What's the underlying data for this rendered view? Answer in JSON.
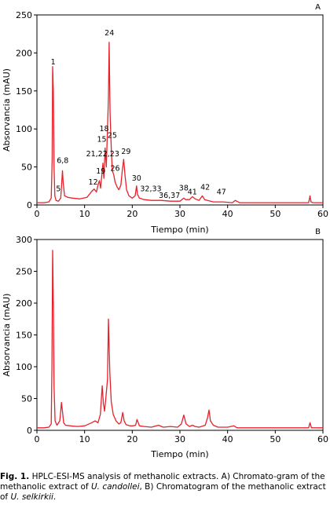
{
  "caption": {
    "fig_label": "Fig. 1.",
    "text_1": " HPLC-ESI-MS analysis of methanolic extracts. A) Chromato-gram of the methanolic extract of ",
    "species_a": "U. candollei",
    "text_2": ", B) Chromatogram of the methanolic extract of ",
    "species_b": "U. selkirkii",
    "text_3": "."
  },
  "colors": {
    "trace": "#e8202a",
    "axis": "#000000"
  },
  "chart_data": [
    {
      "type": "line",
      "panel": "A",
      "xlabel": "Tiempo (min)",
      "ylabel": "Absorvancia (mAU)",
      "xlim": [
        0,
        60
      ],
      "ylim": [
        0,
        250
      ],
      "x_ticks": [
        0,
        10,
        20,
        30,
        40,
        50,
        60
      ],
      "y_ticks": [
        0,
        50,
        100,
        150,
        200,
        250
      ],
      "grid": false,
      "series": [
        {
          "x": [
            0,
            1.5,
            2.5,
            3.0,
            3.2,
            3.3,
            3.45,
            3.6,
            3.75,
            4.0,
            4.5,
            5.0,
            5.2,
            5.35,
            5.5,
            5.8,
            6.5,
            7.5,
            9.0,
            10.5,
            11.5,
            12.0,
            12.5,
            12.8,
            13.1,
            13.35,
            13.6,
            13.85,
            14.05,
            14.3,
            14.55,
            14.8,
            15.0,
            15.15,
            15.35,
            15.6,
            15.8,
            16.1,
            16.4,
            16.8,
            17.2,
            17.6,
            17.9,
            18.2,
            18.5,
            18.8,
            19.3,
            20.0,
            20.6,
            20.9,
            21.1,
            21.5,
            22.5,
            24.0,
            26.0,
            28.0,
            30.0,
            30.8,
            31.2,
            32.0,
            32.6,
            33.2,
            34.0,
            34.7,
            35.2,
            35.8,
            37.0,
            39.0,
            41.0,
            41.6,
            42.5,
            44.0,
            46.0,
            50.0,
            55.0,
            57.0,
            57.3,
            57.5,
            57.8,
            60.0
          ],
          "y": [
            3,
            3,
            4,
            9,
            60,
            182,
            150,
            50,
            12,
            6,
            5,
            9,
            28,
            45,
            30,
            12,
            10,
            9,
            8,
            10,
            18,
            21,
            17,
            26,
            32,
            22,
            38,
            55,
            35,
            75,
            50,
            100,
            140,
            214,
            120,
            75,
            45,
            40,
            30,
            24,
            20,
            26,
            45,
            60,
            38,
            20,
            12,
            9,
            12,
            25,
            14,
            9,
            7,
            6,
            6,
            5,
            5,
            9,
            7,
            7,
            11,
            8,
            6,
            12,
            7,
            6,
            4,
            4,
            3,
            6,
            3,
            3,
            3,
            3,
            3,
            3,
            12,
            4,
            3,
            3
          ]
        }
      ],
      "annotations": [
        {
          "text": "1",
          "x": 3.4,
          "y": 182
        },
        {
          "text": "5",
          "x": 4.5,
          "y": 15
        },
        {
          "text": "6,8",
          "x": 5.4,
          "y": 52
        },
        {
          "text": "12",
          "x": 11.8,
          "y": 24
        },
        {
          "text": "19",
          "x": 13.4,
          "y": 38
        },
        {
          "text": "21,22,23",
          "x": 13.8,
          "y": 61
        },
        {
          "text": "15",
          "x": 13.6,
          "y": 80
        },
        {
          "text": "18",
          "x": 14.1,
          "y": 94
        },
        {
          "text": "25",
          "x": 15.8,
          "y": 85
        },
        {
          "text": "26",
          "x": 16.4,
          "y": 42
        },
        {
          "text": "29",
          "x": 18.7,
          "y": 64
        },
        {
          "text": "24",
          "x": 15.2,
          "y": 220
        },
        {
          "text": "30",
          "x": 20.9,
          "y": 29
        },
        {
          "text": "32,33",
          "x": 23.9,
          "y": 15
        },
        {
          "text": "36,37",
          "x": 27.8,
          "y": 6
        },
        {
          "text": "38",
          "x": 30.8,
          "y": 16
        },
        {
          "text": "41",
          "x": 32.6,
          "y": 11
        },
        {
          "text": "42",
          "x": 35.3,
          "y": 17
        },
        {
          "text": "47",
          "x": 38.7,
          "y": 11
        }
      ]
    },
    {
      "type": "line",
      "panel": "B",
      "xlabel": "Tiempo (min)",
      "ylabel": "Absorvancia (mAU)",
      "xlim": [
        0,
        60
      ],
      "ylim": [
        0,
        300
      ],
      "x_ticks": [
        0,
        10,
        20,
        30,
        40,
        50,
        60
      ],
      "y_ticks": [
        0,
        50,
        100,
        150,
        200,
        250,
        300
      ],
      "grid": false,
      "series": [
        {
          "x": [
            0,
            1.5,
            2.5,
            3.0,
            3.15,
            3.3,
            3.45,
            3.6,
            3.8,
            4.2,
            4.8,
            5.0,
            5.15,
            5.35,
            5.6,
            6.0,
            7.0,
            8.5,
            10.0,
            11.5,
            12.2,
            12.8,
            13.3,
            13.7,
            13.95,
            14.2,
            14.5,
            14.8,
            15.0,
            15.3,
            15.6,
            16.0,
            16.6,
            17.2,
            17.6,
            18.0,
            18.3,
            18.7,
            19.5,
            20.2,
            20.7,
            21.0,
            21.5,
            22.5,
            24.0,
            25.5,
            26.5,
            28.0,
            29.5,
            30.3,
            30.8,
            31.3,
            32.0,
            32.6,
            33.2,
            34.0,
            35.3,
            35.8,
            36.1,
            36.4,
            37.0,
            38.0,
            40.0,
            41.3,
            42.0,
            44.0,
            48.0,
            55.0,
            57.0,
            57.3,
            57.6,
            58.0,
            60.0
          ],
          "y": [
            4,
            4,
            5,
            10,
            100,
            283,
            200,
            70,
            15,
            8,
            15,
            30,
            44,
            30,
            12,
            8,
            7,
            6,
            7,
            12,
            15,
            12,
            25,
            70,
            42,
            30,
            55,
            80,
            175,
            90,
            45,
            25,
            15,
            10,
            12,
            28,
            15,
            9,
            7,
            7,
            8,
            17,
            7,
            6,
            5,
            8,
            5,
            6,
            5,
            10,
            24,
            10,
            6,
            8,
            6,
            5,
            8,
            20,
            32,
            15,
            8,
            5,
            5,
            7,
            4,
            4,
            4,
            4,
            4,
            12,
            4,
            4,
            4
          ]
        }
      ]
    }
  ]
}
